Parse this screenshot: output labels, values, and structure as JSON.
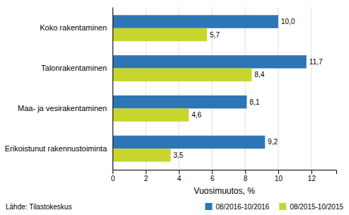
{
  "chart_data": {
    "type": "bar",
    "orientation": "horizontal",
    "categories": [
      "Erikoistunut rakennustoiminta",
      "Maa- ja vesirakentaminen",
      "Talonrakentaminen",
      "Koko rakentaminen"
    ],
    "series": [
      {
        "name": "08/2016-10/2016",
        "color": "#2e75b6",
        "values": [
          9.2,
          8.1,
          11.7,
          10.0
        ],
        "value_labels": [
          "9,2",
          "8,1",
          "11,7",
          "10,0"
        ]
      },
      {
        "name": "08/2015-10/2015",
        "color": "#c8d52e",
        "values": [
          3.5,
          4.6,
          8.4,
          5.7
        ],
        "value_labels": [
          "3,5",
          "4,6",
          "8,4",
          "5,7"
        ]
      }
    ],
    "x_label": "Vuosimuutos, %",
    "xlim": [
      0,
      13.5
    ],
    "xticks": [
      0,
      2,
      4,
      6,
      8,
      10,
      12
    ],
    "grid": true,
    "legend": "lower right",
    "data_labels": true,
    "annotations": [
      "Lähde: Tilastokeskus"
    ]
  }
}
